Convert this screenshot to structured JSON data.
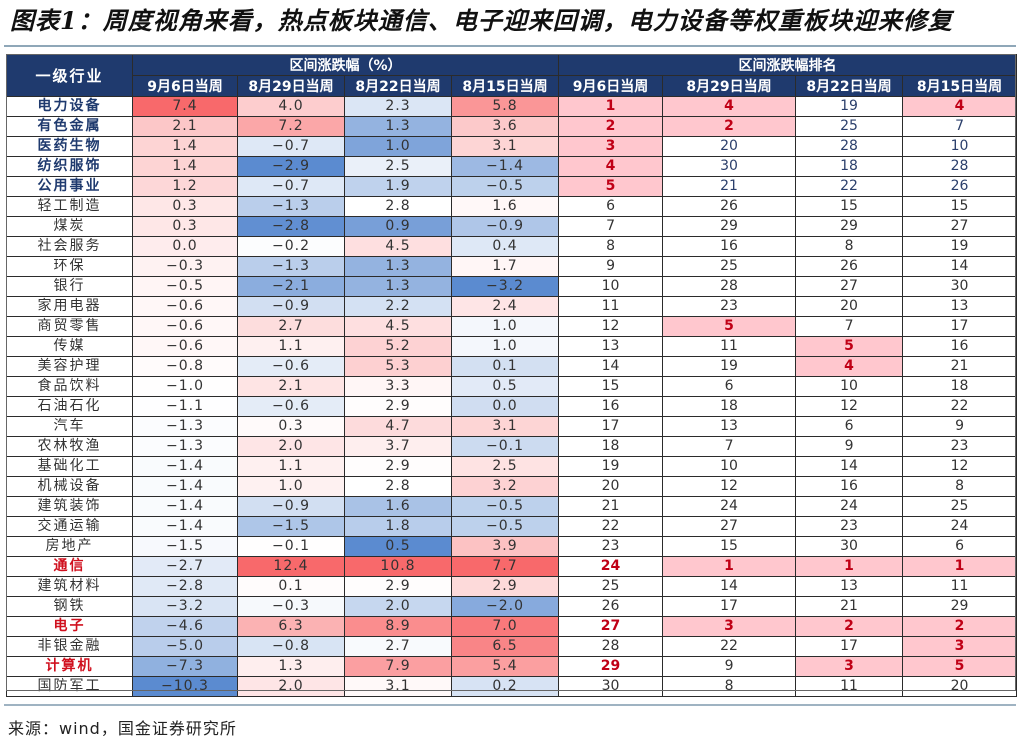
{
  "title": "图表1：周度视角来看，热点板块通信、电子迎来回调，电力设备等权重板块迎来修复",
  "source": "来源：wind，国金证券研究所",
  "colors": {
    "header_bg": "#1f3a6e",
    "scale_min": "#5b8bd0",
    "scale_mid": "#ffffff",
    "scale_max": "#f8696b",
    "rank_highlight_bg": "#ffc7ce",
    "rank_highlight_text": "#c00016",
    "top5_name": "#1f3a6e",
    "hot_name": "#d0101e"
  },
  "table": {
    "industry_header": "一级行业",
    "group_change": "区间涨跌幅（%）",
    "group_rank": "区间涨跌幅排名",
    "weeks": [
      "9月6日当周",
      "8月29日当周",
      "8月22日当周",
      "8月15日当周"
    ],
    "rows": [
      {
        "name": "电力设备",
        "style": "top5",
        "chg": [
          "7.4",
          "4.0",
          "2.3",
          "5.8"
        ],
        "rank": [
          1,
          4,
          19,
          4
        ]
      },
      {
        "name": "有色金属",
        "style": "top5",
        "chg": [
          "2.1",
          "7.2",
          "1.3",
          "3.6"
        ],
        "rank": [
          2,
          2,
          25,
          7
        ]
      },
      {
        "name": "医药生物",
        "style": "top5",
        "chg": [
          "1.4",
          "-0.7",
          "1.0",
          "3.1"
        ],
        "rank": [
          3,
          20,
          28,
          10
        ]
      },
      {
        "name": "纺织服饰",
        "style": "top5",
        "chg": [
          "1.4",
          "-2.9",
          "2.5",
          "-1.4"
        ],
        "rank": [
          4,
          30,
          18,
          28
        ]
      },
      {
        "name": "公用事业",
        "style": "top5",
        "chg": [
          "1.2",
          "-0.7",
          "1.9",
          "-0.5"
        ],
        "rank": [
          5,
          21,
          22,
          26
        ]
      },
      {
        "name": "轻工制造",
        "style": "",
        "chg": [
          "0.3",
          "-1.3",
          "2.8",
          "1.6"
        ],
        "rank": [
          6,
          26,
          15,
          15
        ]
      },
      {
        "name": "煤炭",
        "style": "",
        "chg": [
          "0.3",
          "-2.8",
          "0.9",
          "-0.9"
        ],
        "rank": [
          7,
          29,
          29,
          27
        ]
      },
      {
        "name": "社会服务",
        "style": "",
        "chg": [
          "0.0",
          "-0.2",
          "4.5",
          "0.4"
        ],
        "rank": [
          8,
          16,
          8,
          19
        ]
      },
      {
        "name": "环保",
        "style": "",
        "chg": [
          "-0.3",
          "-1.3",
          "1.3",
          "1.7"
        ],
        "rank": [
          9,
          25,
          26,
          14
        ]
      },
      {
        "name": "银行",
        "style": "",
        "chg": [
          "-0.5",
          "-2.1",
          "1.3",
          "-3.2"
        ],
        "rank": [
          10,
          28,
          27,
          30
        ]
      },
      {
        "name": "家用电器",
        "style": "",
        "chg": [
          "-0.6",
          "-0.9",
          "2.2",
          "2.4"
        ],
        "rank": [
          11,
          23,
          20,
          13
        ]
      },
      {
        "name": "商贸零售",
        "style": "",
        "chg": [
          "-0.6",
          "2.7",
          "4.5",
          "1.0"
        ],
        "rank": [
          12,
          5,
          7,
          17
        ]
      },
      {
        "name": "传媒",
        "style": "",
        "chg": [
          "-0.6",
          "1.1",
          "5.2",
          "1.0"
        ],
        "rank": [
          13,
          11,
          5,
          16
        ]
      },
      {
        "name": "美容护理",
        "style": "",
        "chg": [
          "-0.8",
          "-0.6",
          "5.3",
          "0.1"
        ],
        "rank": [
          14,
          19,
          4,
          21
        ]
      },
      {
        "name": "食品饮料",
        "style": "",
        "chg": [
          "-1.0",
          "2.1",
          "3.3",
          "0.5"
        ],
        "rank": [
          15,
          6,
          10,
          18
        ]
      },
      {
        "name": "石油石化",
        "style": "",
        "chg": [
          "-1.1",
          "-0.6",
          "2.9",
          "0.0"
        ],
        "rank": [
          16,
          18,
          12,
          22
        ]
      },
      {
        "name": "汽车",
        "style": "",
        "chg": [
          "-1.3",
          "0.3",
          "4.7",
          "3.1"
        ],
        "rank": [
          17,
          13,
          6,
          9
        ]
      },
      {
        "name": "农林牧渔",
        "style": "",
        "chg": [
          "-1.3",
          "2.0",
          "3.7",
          "-0.1"
        ],
        "rank": [
          18,
          7,
          9,
          23
        ]
      },
      {
        "name": "基础化工",
        "style": "",
        "chg": [
          "-1.4",
          "1.1",
          "2.9",
          "2.5"
        ],
        "rank": [
          19,
          10,
          14,
          12
        ]
      },
      {
        "name": "机械设备",
        "style": "",
        "chg": [
          "-1.4",
          "1.0",
          "2.8",
          "3.2"
        ],
        "rank": [
          20,
          12,
          16,
          8
        ]
      },
      {
        "name": "建筑装饰",
        "style": "",
        "chg": [
          "-1.4",
          "-0.9",
          "1.6",
          "-0.5"
        ],
        "rank": [
          21,
          24,
          24,
          25
        ]
      },
      {
        "name": "交通运输",
        "style": "",
        "chg": [
          "-1.4",
          "-1.5",
          "1.8",
          "-0.5"
        ],
        "rank": [
          22,
          27,
          23,
          24
        ]
      },
      {
        "name": "房地产",
        "style": "",
        "chg": [
          "-1.5",
          "-0.1",
          "0.5",
          "3.9"
        ],
        "rank": [
          23,
          15,
          30,
          6
        ]
      },
      {
        "name": "通信",
        "style": "hot",
        "chg": [
          "-2.7",
          "12.4",
          "10.8",
          "7.7"
        ],
        "rank": [
          24,
          1,
          1,
          1
        ]
      },
      {
        "name": "建筑材料",
        "style": "",
        "chg": [
          "-2.8",
          "0.1",
          "2.9",
          "2.9"
        ],
        "rank": [
          25,
          14,
          13,
          11
        ]
      },
      {
        "name": "钢铁",
        "style": "",
        "chg": [
          "-3.2",
          "-0.3",
          "2.0",
          "-2.0"
        ],
        "rank": [
          26,
          17,
          21,
          29
        ]
      },
      {
        "name": "电子",
        "style": "hot",
        "chg": [
          "-4.6",
          "6.3",
          "8.9",
          "7.0"
        ],
        "rank": [
          27,
          3,
          2,
          2
        ]
      },
      {
        "name": "非银金融",
        "style": "",
        "chg": [
          "-5.0",
          "-0.8",
          "2.7",
          "6.5"
        ],
        "rank": [
          28,
          22,
          17,
          3
        ]
      },
      {
        "name": "计算机",
        "style": "hot",
        "chg": [
          "-7.3",
          "1.3",
          "7.9",
          "5.4"
        ],
        "rank": [
          29,
          9,
          3,
          5
        ]
      },
      {
        "name": "国防军工",
        "style": "",
        "chg": [
          "-10.3",
          "2.0",
          "3.1",
          "0.2"
        ],
        "rank": [
          30,
          8,
          11,
          20
        ]
      }
    ]
  }
}
